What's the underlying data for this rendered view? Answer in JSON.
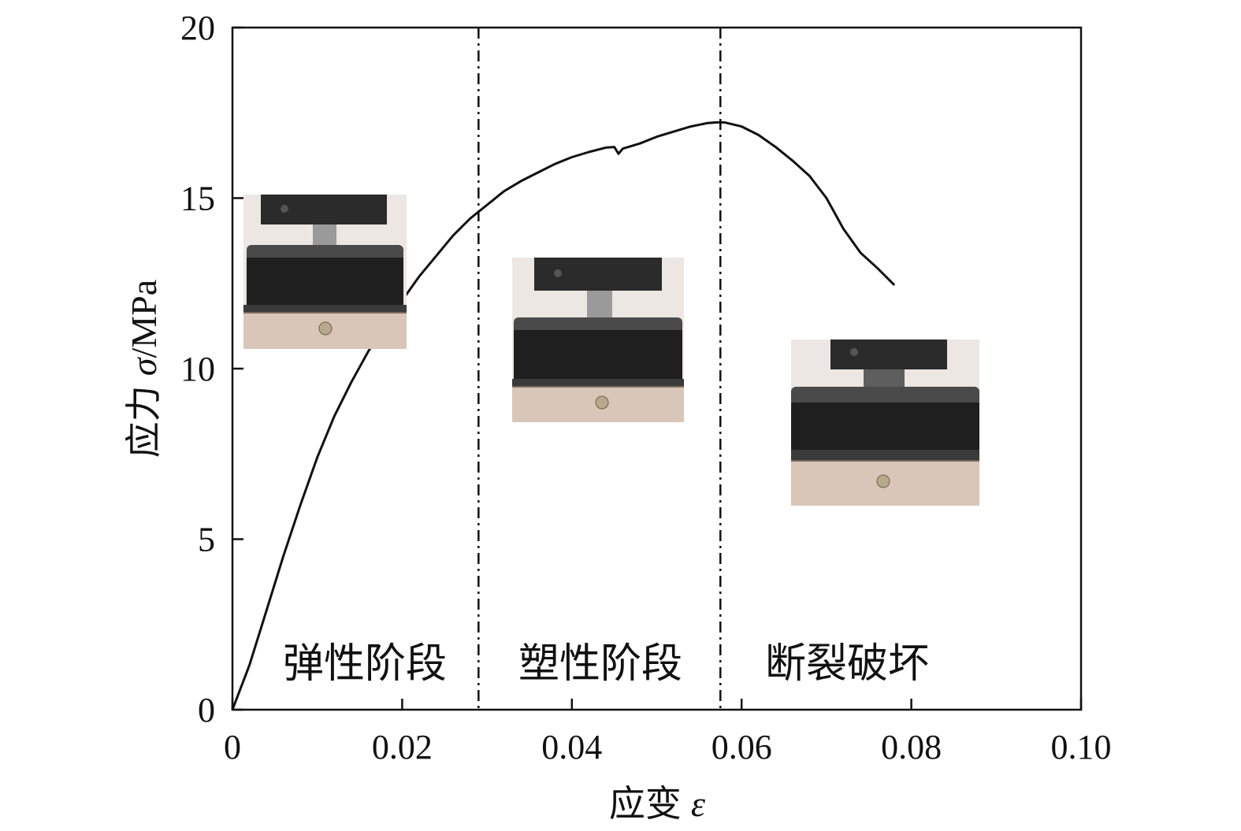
{
  "chart_data": {
    "type": "line",
    "xlabel_text": "应变",
    "xlabel_symbol": "ε",
    "ylabel_text": "应力",
    "ylabel_symbol": "σ",
    "ylabel_unit": "/MPa",
    "xlim": [
      0,
      0.1
    ],
    "ylim": [
      0,
      20
    ],
    "x_ticks": [
      0,
      0.02,
      0.04,
      0.06,
      0.08,
      0.1
    ],
    "x_tick_labels": [
      "0",
      "0.02",
      "0.04",
      "0.06",
      "0.08",
      "0.10"
    ],
    "y_ticks": [
      0,
      5,
      10,
      15,
      20
    ],
    "y_tick_labels": [
      "0",
      "5",
      "10",
      "15",
      "20"
    ],
    "grid": false,
    "series": [
      {
        "x": [
          0,
          0.002,
          0.004,
          0.006,
          0.008,
          0.01,
          0.012,
          0.014,
          0.016,
          0.018,
          0.02,
          0.022,
          0.024,
          0.026,
          0.028,
          0.03,
          0.032,
          0.034,
          0.036,
          0.038,
          0.04,
          0.042,
          0.044,
          0.045,
          0.0455,
          0.046,
          0.048,
          0.05,
          0.052,
          0.054,
          0.056,
          0.057,
          0.058,
          0.06,
          0.062,
          0.064,
          0.066,
          0.068,
          0.07,
          0.072,
          0.074,
          0.076,
          0.078
        ],
        "y": [
          0,
          1.3,
          2.9,
          4.5,
          6.0,
          7.4,
          8.6,
          9.6,
          10.5,
          11.3,
          12.0,
          12.7,
          13.3,
          13.9,
          14.4,
          14.8,
          15.2,
          15.5,
          15.75,
          16.0,
          16.2,
          16.35,
          16.48,
          16.5,
          16.3,
          16.45,
          16.6,
          16.8,
          16.95,
          17.1,
          17.2,
          17.22,
          17.22,
          17.1,
          16.85,
          16.5,
          16.1,
          15.65,
          15.0,
          14.1,
          13.4,
          12.95,
          12.45
        ]
      }
    ],
    "phase_boundaries": [
      0.029,
      0.0575
    ],
    "phase_labels": [
      "弹性阶段",
      "塑性阶段",
      "断裂破坏"
    ]
  }
}
